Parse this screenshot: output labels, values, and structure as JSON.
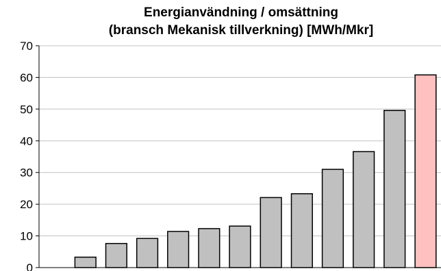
{
  "chart_data": {
    "type": "bar",
    "title": "Energianvändning / omsättning",
    "subtitle": "(bransch Mekanisk tillverkning) [MWh/Mkr]",
    "xlabel": "",
    "ylabel": "",
    "ylim": [
      0,
      70
    ],
    "yticks": [
      "0",
      "10",
      "20",
      "30",
      "40",
      "50",
      "60",
      "70"
    ],
    "grid": true,
    "legend": "none",
    "colors": {
      "default": "#c0c0c0",
      "highlight": "#ffc0c0",
      "border": "#000000",
      "grid": "#c0c0c0"
    },
    "values": [
      0,
      3.3,
      7.6,
      9.2,
      11.4,
      12.3,
      13.1,
      22.1,
      23.3,
      31.0,
      36.6,
      49.6,
      60.8
    ],
    "highlight_index": 12
  }
}
